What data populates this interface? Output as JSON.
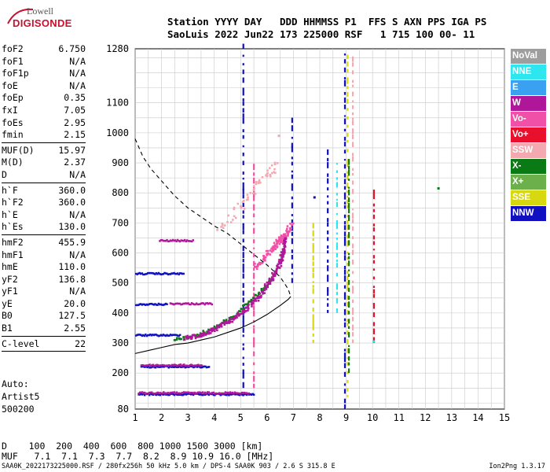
{
  "logo": {
    "top": "Lowell",
    "bottom": "DIGISONDE"
  },
  "header": {
    "line1": "Station YYYY DAY   DDD HHMMSS P1  FFS S AXN PPS IGA PS",
    "line2": "SaoLuis 2022 Jun22 173 225000 RSF   1 715 100 00- 11"
  },
  "params": [
    {
      "k": "foF2",
      "v": "6.750"
    },
    {
      "k": "foF1",
      "v": "N/A"
    },
    {
      "k": "foF1p",
      "v": "N/A"
    },
    {
      "k": "foE",
      "v": "N/A"
    },
    {
      "k": "foEp",
      "v": "0.35"
    },
    {
      "k": "fxI",
      "v": "7.05"
    },
    {
      "k": "foEs",
      "v": "2.95"
    },
    {
      "k": "fmin",
      "v": "2.15"
    },
    {
      "sep": true
    },
    {
      "k": "MUF(D)",
      "v": "15.97"
    },
    {
      "k": "M(D)",
      "v": "2.37"
    },
    {
      "k": "D",
      "v": "N/A"
    },
    {
      "sep": true
    },
    {
      "k": "h`F",
      "v": "360.0"
    },
    {
      "k": "h`F2",
      "v": "360.0"
    },
    {
      "k": "h`E",
      "v": "N/A"
    },
    {
      "k": "h`Es",
      "v": "130.0"
    },
    {
      "sep": true
    },
    {
      "k": "hmF2",
      "v": "455.9"
    },
    {
      "k": "hmF1",
      "v": "N/A"
    },
    {
      "k": "hmE",
      "v": "110.0"
    },
    {
      "k": "yF2",
      "v": "136.8"
    },
    {
      "k": "yF1",
      "v": "N/A"
    },
    {
      "k": "yE",
      "v": "20.0"
    },
    {
      "k": "B0",
      "v": "127.5"
    },
    {
      "k": "B1",
      "v": "2.55"
    },
    {
      "sep": true
    },
    {
      "k": "C-level",
      "v": "22"
    },
    {
      "sep": true
    }
  ],
  "auto": {
    "line1": "Auto:",
    "line2": "Artist5",
    "line3": "500200"
  },
  "bottom_table": {
    "d_row": "D    100  200  400  600  800 1000 1500 3000 [km]",
    "muf_row": "MUF   7.1  7.1  7.3  7.7  8.2  8.9 10.9 16.0 [MHz]"
  },
  "footer": {
    "left": "SAA0K_2022173225000.RSF / 280fx256h 50 kHz 5.0 km / DPS-4 SAA0K 903 / 2.6 S 315.8 E",
    "right": "Ion2Png 1.3.17"
  },
  "legend": [
    {
      "label": "NoVal",
      "color": "#9e9e9e"
    },
    {
      "label": "NNE",
      "color": "#2ee6f0"
    },
    {
      "label": "E",
      "color": "#3aa0f0"
    },
    {
      "label": "W",
      "color": "#b0169a"
    },
    {
      "label": "Vo-",
      "color": "#f050a8"
    },
    {
      "label": "Vo+",
      "color": "#e8102c"
    },
    {
      "label": "SSW",
      "color": "#f4a8b0"
    },
    {
      "label": "X-",
      "color": "#0a7a14"
    },
    {
      "label": "X+",
      "color": "#6cb04c"
    },
    {
      "label": "SSE",
      "color": "#d8d810"
    },
    {
      "label": "NNW",
      "color": "#1010c0"
    }
  ],
  "chart_data": {
    "type": "scatter",
    "xlim": [
      1,
      15
    ],
    "ylim": [
      80,
      1280
    ],
    "x_ticks": [
      "1",
      "2",
      "3",
      "4",
      "5",
      "6",
      "7",
      "8",
      "9",
      "10",
      "11",
      "12",
      "13",
      "14",
      "15"
    ],
    "y_ticks": [
      "80",
      "200",
      "300",
      "400",
      "500",
      "600",
      "700",
      "800",
      "900",
      "1000",
      "1100",
      "1280"
    ],
    "grid": true,
    "es_traces": [
      {
        "x": [
          1.1,
          5.5
        ],
        "y": [
          128,
          128
        ],
        "color": "#1010c0"
      },
      {
        "x": [
          1.1,
          5.3
        ],
        "y": [
          133,
          133
        ],
        "color": "#b0169a"
      },
      {
        "x": [
          1.2,
          3.8
        ],
        "y": [
          220,
          220
        ],
        "color": "#1010c0"
      },
      {
        "x": [
          1.2,
          3.5
        ],
        "y": [
          225,
          225
        ],
        "color": "#b0169a"
      },
      {
        "x": [
          1.0,
          2.7
        ],
        "y": [
          325,
          325
        ],
        "color": "#1010c0"
      },
      {
        "x": [
          1.0,
          2.2
        ],
        "y": [
          428,
          428
        ],
        "color": "#1010c0"
      },
      {
        "x": [
          2.3,
          3.9
        ],
        "y": [
          430,
          430
        ],
        "color": "#b0169a"
      },
      {
        "x": [
          1.0,
          2.8
        ],
        "y": [
          530,
          530
        ],
        "color": "#1010c0"
      },
      {
        "x": [
          1.9,
          3.2
        ],
        "y": [
          640,
          640
        ],
        "color": "#b0169a"
      }
    ],
    "f2_ordinary": {
      "x": [
        2.9,
        3.5,
        4.0,
        4.6,
        5.1,
        5.6,
        6.0,
        6.3,
        6.5,
        6.6,
        6.7
      ],
      "y": [
        320,
        330,
        350,
        380,
        410,
        450,
        500,
        540,
        580,
        620,
        660
      ],
      "color": "#b0169a"
    },
    "f2_extra": {
      "x": [
        2.5,
        3.0,
        3.6,
        4.2,
        4.8,
        5.3,
        5.8,
        6.2
      ],
      "y": [
        315,
        322,
        340,
        365,
        400,
        440,
        480,
        520
      ],
      "color": "#0a7a14"
    },
    "f2_high_ray": {
      "x": [
        5.5,
        5.8,
        6.1,
        6.3,
        6.5,
        6.7,
        6.9
      ],
      "y": [
        555,
        580,
        610,
        630,
        650,
        670,
        700
      ],
      "color": "#f050a8"
    },
    "spread_arc": {
      "x": [
        4.1,
        4.6,
        5.0,
        5.3,
        5.6,
        5.9,
        6.1,
        6.3
      ],
      "y": [
        680,
        720,
        755,
        790,
        830,
        860,
        880,
        900
      ],
      "color": "#f4a8b0"
    },
    "profile_dashed": {
      "x": [
        1.0,
        1.3,
        1.6,
        2.0,
        2.5,
        3.0,
        3.5,
        4.0,
        4.5,
        5.0,
        5.5,
        6.0,
        6.5,
        6.8,
        6.9
      ],
      "y": [
        980,
        920,
        880,
        840,
        790,
        750,
        720,
        690,
        665,
        630,
        595,
        560,
        520,
        480,
        455
      ]
    },
    "profile_solid": {
      "x": [
        1.0,
        1.5,
        2.0,
        2.5,
        3.0,
        3.5,
        4.0,
        4.5,
        5.0,
        5.5,
        6.0,
        6.5,
        6.8,
        6.9
      ],
      "y": [
        265,
        275,
        285,
        295,
        300,
        310,
        320,
        335,
        350,
        370,
        395,
        425,
        445,
        455
      ]
    },
    "vertical_streaks": [
      {
        "x": 8.95,
        "y": [
          80,
          1280
        ],
        "color": "#1010c0"
      },
      {
        "x": 9.05,
        "y": [
          120,
          1260
        ],
        "color": "#d8d810"
      },
      {
        "x": 9.25,
        "y": [
          300,
          1250
        ],
        "color": "#f4a8b0"
      },
      {
        "x": 9.1,
        "y": [
          200,
          900
        ],
        "color": "#0a7a14"
      },
      {
        "x": 8.65,
        "y": [
          400,
          900
        ],
        "color": "#2ee6f0"
      },
      {
        "x": 8.3,
        "y": [
          400,
          950
        ],
        "color": "#1010c0"
      },
      {
        "x": 5.1,
        "y": [
          150,
          1280
        ],
        "color": "#1010c0"
      },
      {
        "x": 5.5,
        "y": [
          150,
          900
        ],
        "color": "#f050a8"
      },
      {
        "x": 6.95,
        "y": [
          500,
          1050
        ],
        "color": "#1010c0"
      },
      {
        "x": 7.75,
        "y": [
          300,
          700
        ],
        "color": "#d8d810"
      },
      {
        "x": 10.05,
        "y": [
          300,
          800
        ],
        "color": "#e8102c"
      }
    ],
    "isolated_points": [
      {
        "x": 12.5,
        "y": 815,
        "color": "#0a7a14"
      },
      {
        "x": 10.05,
        "y": 305,
        "color": "#2ee6f0"
      },
      {
        "x": 7.8,
        "y": 785,
        "color": "#1010c0"
      },
      {
        "x": 6.45,
        "y": 990,
        "color": "#f4a8b0"
      }
    ]
  }
}
